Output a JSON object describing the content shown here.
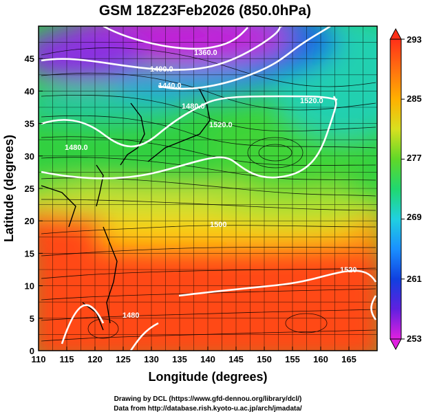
{
  "title": "GSM 18Z23Feb2026 (850.0hPa)",
  "xaxis": {
    "label": "Longitude (degrees)",
    "range": [
      110,
      170
    ],
    "ticks": [
      "110",
      "115",
      "120",
      "125",
      "130",
      "135",
      "140",
      "145",
      "150",
      "155",
      "160",
      "165"
    ]
  },
  "yaxis": {
    "label": "Latitude  (degrees)",
    "range": [
      0,
      50
    ],
    "ticks": [
      "0",
      "5",
      "10",
      "15",
      "20",
      "25",
      "30",
      "35",
      "40",
      "45"
    ]
  },
  "colorbar": {
    "labels": [
      "293",
      "285",
      "277",
      "269",
      "261",
      "253"
    ],
    "range": [
      253,
      293
    ],
    "colors": [
      "#e020e0",
      "#6a2ae0",
      "#1040e0",
      "#1a90ff",
      "#20d2e0",
      "#20e070",
      "#2ad030",
      "#8ad82a",
      "#e0e020",
      "#ffb000",
      "#ff7a10",
      "#ff3a18"
    ]
  },
  "contour_labels": [
    "1360.0",
    "1400.0",
    "1440.0",
    "1480.0",
    "1520.0",
    "1480.0",
    "1520.0",
    "1500",
    "1520",
    "1480"
  ],
  "credits": {
    "line1": "Drawing by DCL (https://www.gfd-dennou.org/library/dcl/)",
    "line2": "Data from http://database.rish.kyoto-u.ac.jp/arch/jmadata/"
  },
  "chart_data": {
    "type": "heatmap",
    "title": "GSM 18Z23Feb2026 (850.0hPa)",
    "xlabel": "Longitude (degrees)",
    "ylabel": "Latitude  (degrees)",
    "xlim": [
      110,
      170
    ],
    "ylim": [
      0,
      50
    ],
    "colorbar_range": [
      253,
      293
    ],
    "grid": true,
    "overlays": [
      "streamlines",
      "geopotential-height-contours",
      "coastlines"
    ]
  }
}
